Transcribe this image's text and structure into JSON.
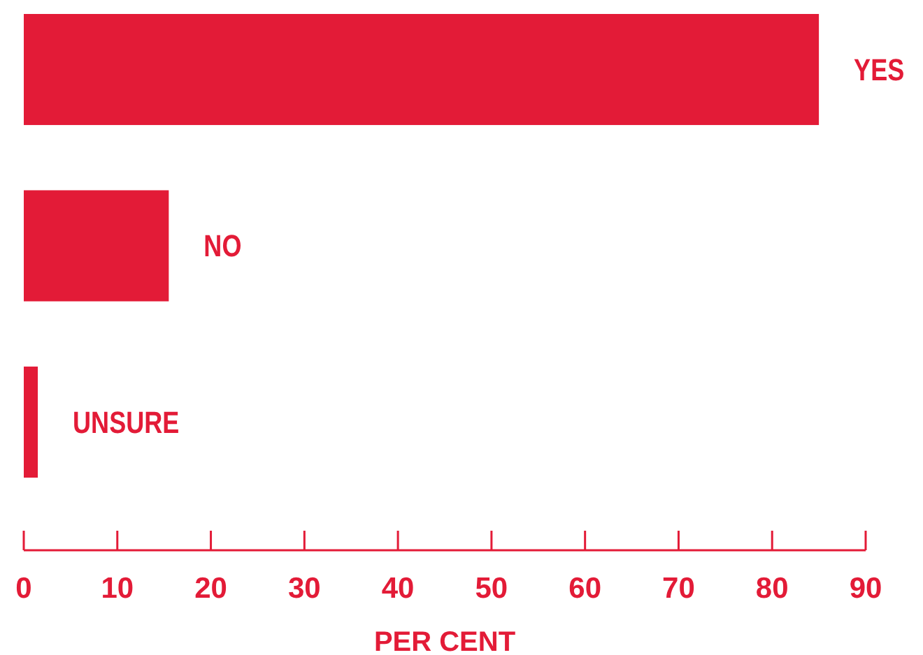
{
  "chart_data": {
    "type": "bar",
    "orientation": "horizontal",
    "categories": [
      "YES",
      "NO",
      "UNSURE"
    ],
    "values": [
      85,
      15.5,
      1.5
    ],
    "color": "#e31b37",
    "xlabel": "PER CENT",
    "xlim": [
      0,
      90
    ],
    "xticks": [
      0,
      10,
      20,
      30,
      40,
      50,
      60,
      70,
      80,
      90
    ],
    "grid": false
  }
}
